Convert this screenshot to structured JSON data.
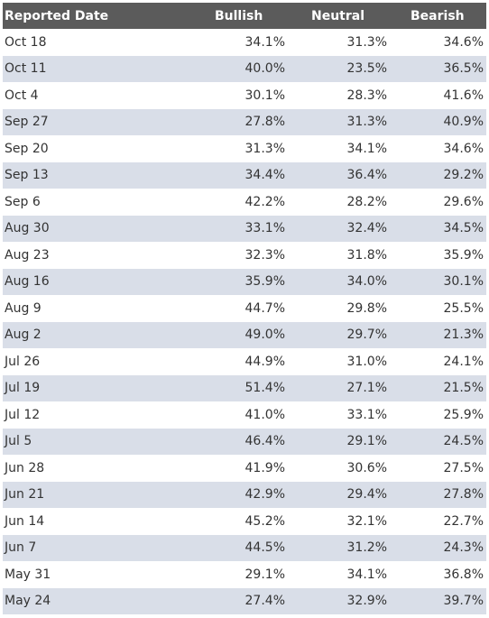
{
  "columns": [
    "Reported Date",
    "Bullish",
    "Neutral",
    "Bearish"
  ],
  "rows": [
    {
      "date": "Oct 18",
      "bullish": "34.1%",
      "neutral": "31.3%",
      "bearish": "34.6%"
    },
    {
      "date": "Oct 11",
      "bullish": "40.0%",
      "neutral": "23.5%",
      "bearish": "36.5%"
    },
    {
      "date": "Oct 4",
      "bullish": "30.1%",
      "neutral": "28.3%",
      "bearish": "41.6%"
    },
    {
      "date": "Sep 27",
      "bullish": "27.8%",
      "neutral": "31.3%",
      "bearish": "40.9%"
    },
    {
      "date": "Sep 20",
      "bullish": "31.3%",
      "neutral": "34.1%",
      "bearish": "34.6%"
    },
    {
      "date": "Sep 13",
      "bullish": "34.4%",
      "neutral": "36.4%",
      "bearish": "29.2%"
    },
    {
      "date": "Sep 6",
      "bullish": "42.2%",
      "neutral": "28.2%",
      "bearish": "29.6%"
    },
    {
      "date": "Aug 30",
      "bullish": "33.1%",
      "neutral": "32.4%",
      "bearish": "34.5%"
    },
    {
      "date": "Aug 23",
      "bullish": "32.3%",
      "neutral": "31.8%",
      "bearish": "35.9%"
    },
    {
      "date": "Aug 16",
      "bullish": "35.9%",
      "neutral": "34.0%",
      "bearish": "30.1%"
    },
    {
      "date": "Aug 9",
      "bullish": "44.7%",
      "neutral": "29.8%",
      "bearish": "25.5%"
    },
    {
      "date": "Aug 2",
      "bullish": "49.0%",
      "neutral": "29.7%",
      "bearish": "21.3%"
    },
    {
      "date": "Jul 26",
      "bullish": "44.9%",
      "neutral": "31.0%",
      "bearish": "24.1%"
    },
    {
      "date": "Jul 19",
      "bullish": "51.4%",
      "neutral": "27.1%",
      "bearish": "21.5%"
    },
    {
      "date": "Jul 12",
      "bullish": "41.0%",
      "neutral": "33.1%",
      "bearish": "25.9%"
    },
    {
      "date": "Jul 5",
      "bullish": "46.4%",
      "neutral": "29.1%",
      "bearish": "24.5%"
    },
    {
      "date": "Jun 28",
      "bullish": "41.9%",
      "neutral": "30.6%",
      "bearish": "27.5%"
    },
    {
      "date": "Jun 21",
      "bullish": "42.9%",
      "neutral": "29.4%",
      "bearish": "27.8%"
    },
    {
      "date": "Jun 14",
      "bullish": "45.2%",
      "neutral": "32.1%",
      "bearish": "22.7%"
    },
    {
      "date": "Jun 7",
      "bullish": "44.5%",
      "neutral": "31.2%",
      "bearish": "24.3%"
    },
    {
      "date": "May 31",
      "bullish": "29.1%",
      "neutral": "34.1%",
      "bearish": "36.8%"
    },
    {
      "date": "May 24",
      "bullish": "27.4%",
      "neutral": "32.9%",
      "bearish": "39.7%"
    }
  ],
  "colors": {
    "header_bg": "#5b5b5b",
    "header_text": "#ffffff",
    "stripe_bg": "#d9dee8",
    "row_bg": "#ffffff",
    "cell_text": "#333333"
  }
}
